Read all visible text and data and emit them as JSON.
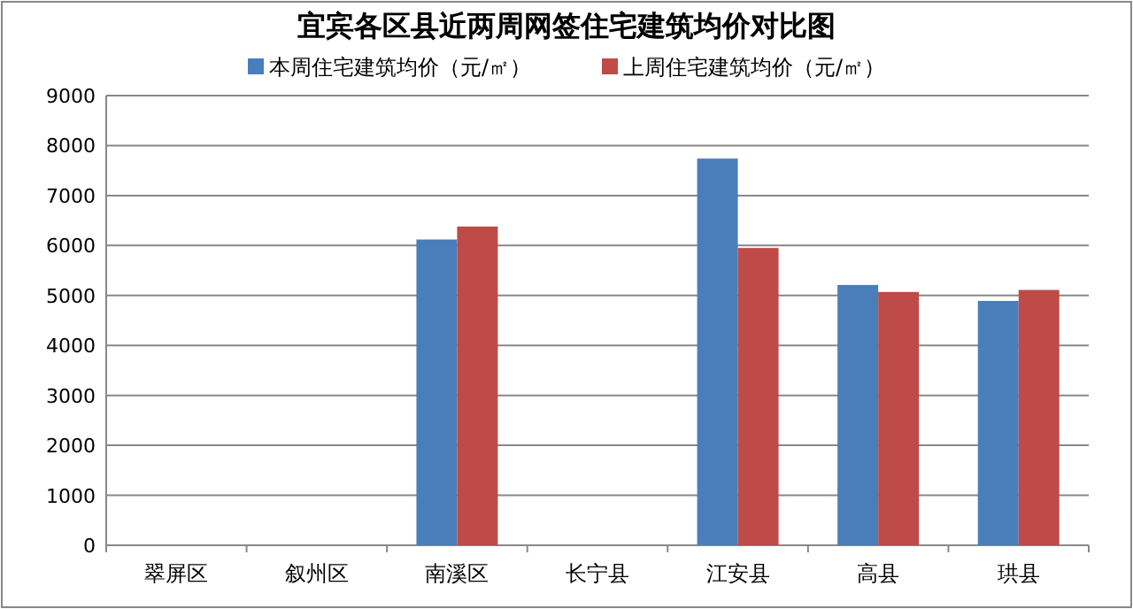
{
  "chart_data": {
    "type": "bar",
    "title": "宜宾各区县近两周网签住宅建筑均价对比图",
    "categories": [
      "翠屏区",
      "叙州区",
      "南溪区",
      "长宁县",
      "江安县",
      "高县",
      "珙县"
    ],
    "series": [
      {
        "name": "本周住宅建筑均价（元/㎡）",
        "color": "#4a7ebb",
        "values": [
          null,
          null,
          6120,
          null,
          7740,
          5210,
          4890
        ]
      },
      {
        "name": "上周住宅建筑均价（元/㎡）",
        "color": "#be4b48",
        "values": [
          null,
          null,
          6380,
          null,
          5950,
          5070,
          5110
        ]
      }
    ],
    "ylim": [
      0,
      9000
    ],
    "yticks": [
      0,
      1000,
      2000,
      3000,
      4000,
      5000,
      6000,
      7000,
      8000,
      9000
    ],
    "grid": "y",
    "legend": "top"
  }
}
